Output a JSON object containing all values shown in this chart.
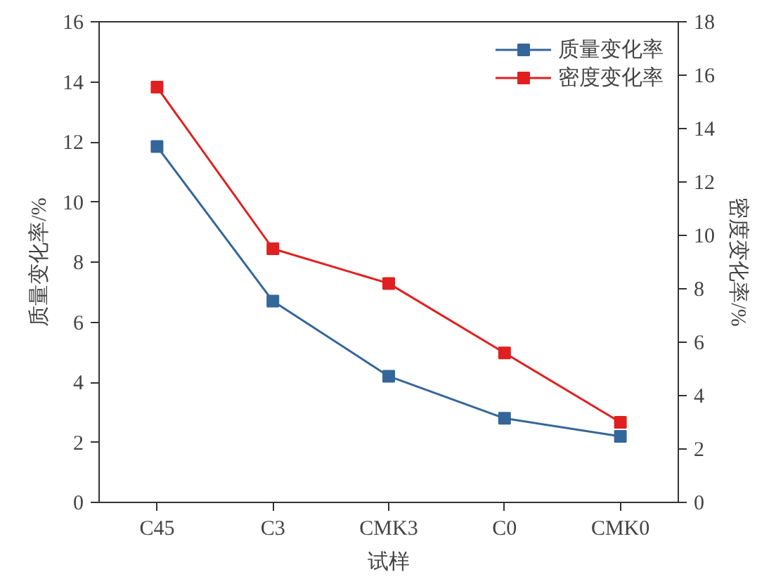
{
  "chart_data": {
    "type": "line",
    "xlabel": "试样",
    "ylabel": "质量变化率/%",
    "y2label": "密度变化率/%",
    "categories": [
      "C45",
      "C3",
      "CMK3",
      "C0",
      "CMK0"
    ],
    "series": [
      {
        "name": "质量变化率",
        "color": "#346699",
        "values": [
          11.85,
          6.7,
          4.2,
          2.8,
          2.2
        ]
      },
      {
        "name": "密度变化率",
        "color": "#e02020",
        "values": [
          15.55,
          9.5,
          8.2,
          5.6,
          3.0
        ],
        "axis": "y2"
      }
    ],
    "ylim": [
      0,
      16
    ],
    "yticks": [
      0,
      2,
      4,
      6,
      8,
      10,
      12,
      14,
      16
    ],
    "y2lim": [
      0,
      18
    ],
    "y2ticks": [
      0,
      2,
      4,
      6,
      8,
      10,
      12,
      14,
      16,
      18
    ],
    "grid": false,
    "legend": "top right",
    "marker": "square",
    "line_style": "solid"
  }
}
